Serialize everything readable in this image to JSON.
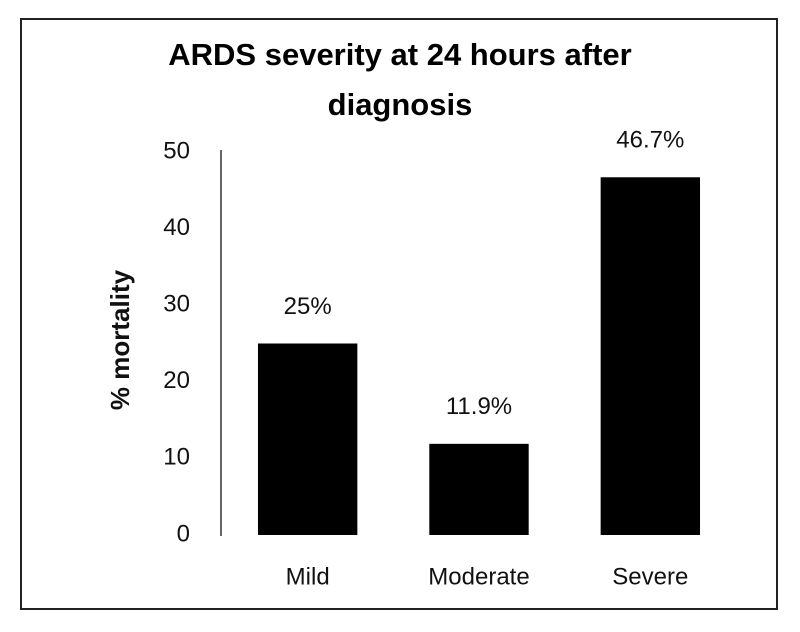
{
  "chart_data": {
    "type": "bar",
    "title": "ARDS severity at 24 hours after diagnosis",
    "y_label": "% mortality",
    "categories": [
      "Mild",
      "Moderate",
      "Severe"
    ],
    "values": [
      25,
      11.9,
      46.7
    ],
    "value_labels": [
      "25%",
      "11.9%",
      "46.7%"
    ],
    "color": "#000000",
    "ylim": [
      0,
      50
    ],
    "yticks": [
      0,
      10,
      20,
      30,
      40,
      50
    ],
    "grid": false
  }
}
